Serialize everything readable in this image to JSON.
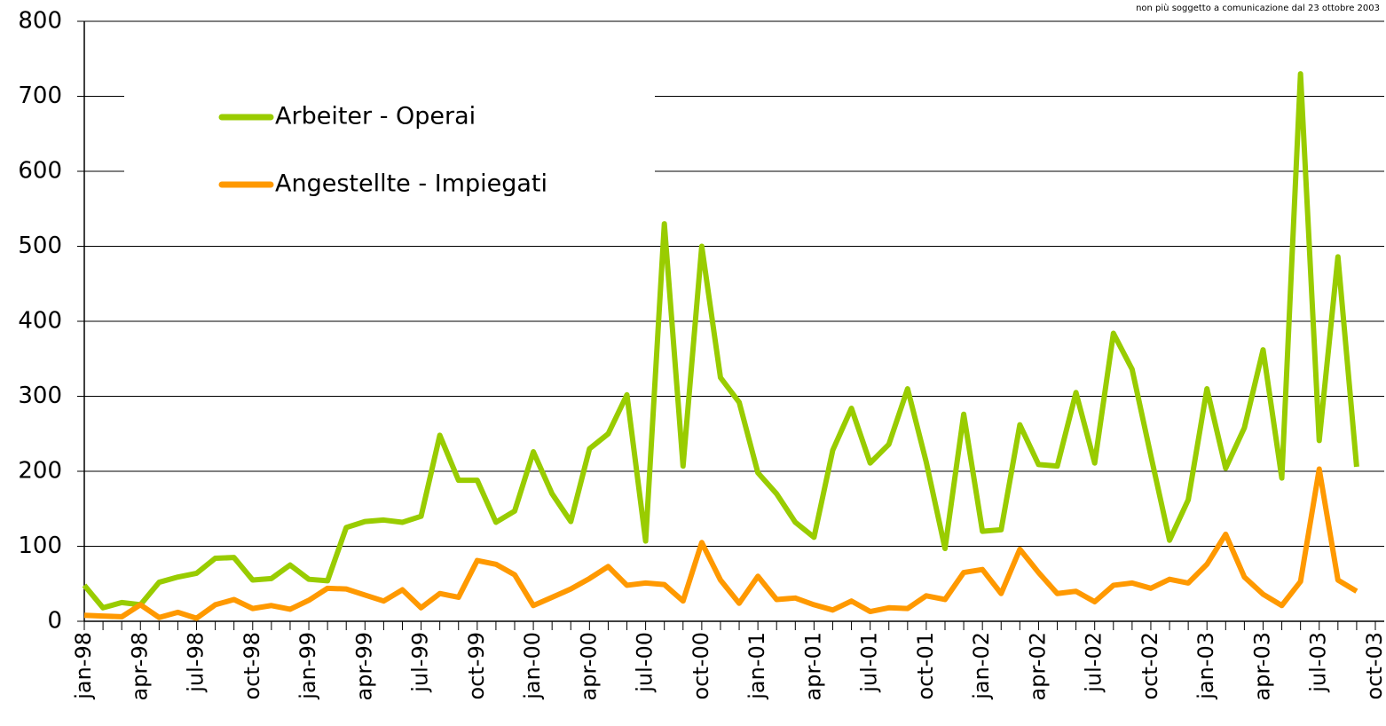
{
  "chart_data": {
    "type": "line",
    "note": "non più soggetto a comunicazione dal 23 ottobre 2003",
    "categories": [
      "jan-98",
      null,
      null,
      "apr-98",
      null,
      null,
      "jul-98",
      null,
      null,
      "oct-98",
      null,
      null,
      "jan-99",
      null,
      null,
      "apr-99",
      null,
      null,
      "jul-99",
      null,
      null,
      "oct-99",
      null,
      null,
      "jan-00",
      null,
      null,
      "apr-00",
      null,
      null,
      "jul-00",
      null,
      null,
      "oct-00",
      null,
      null,
      "jan-01",
      null,
      null,
      "apr-01",
      null,
      null,
      "jul-01",
      null,
      null,
      "oct-01",
      null,
      null,
      "jan-02",
      null,
      null,
      "apr-02",
      null,
      null,
      "jul-02",
      null,
      null,
      "oct-02",
      null,
      null,
      "jan-03",
      null,
      null,
      "apr-03",
      null,
      null,
      "jul-03",
      null,
      null,
      "oct-03"
    ],
    "series": [
      {
        "name": "Arbeiter - Operai",
        "color": "#99cc00",
        "values": [
          48,
          18,
          25,
          22,
          52,
          59,
          64,
          84,
          85,
          55,
          57,
          75,
          56,
          54,
          125,
          133,
          135,
          132,
          140,
          248,
          188,
          188,
          132,
          147,
          226,
          170,
          133,
          230,
          250,
          302,
          107,
          530,
          207,
          500,
          325,
          292,
          198,
          170,
          132,
          112,
          228,
          284,
          211,
          236,
          310,
          212,
          97,
          276,
          120,
          122,
          262,
          209,
          207,
          305,
          211,
          384,
          336,
          221,
          108,
          162,
          310,
          204,
          258,
          362,
          191,
          730,
          241,
          486,
          206,
          null
        ]
      },
      {
        "name": "Angestellte - Impiegati",
        "color": "#ff9900",
        "values": [
          8,
          7,
          6,
          22,
          5,
          12,
          4,
          22,
          29,
          17,
          21,
          16,
          28,
          44,
          43,
          35,
          27,
          42,
          18,
          37,
          32,
          81,
          76,
          62,
          21,
          32,
          43,
          57,
          73,
          48,
          51,
          49,
          27,
          105,
          55,
          24,
          60,
          29,
          31,
          22,
          15,
          27,
          13,
          18,
          17,
          34,
          29,
          65,
          69,
          37,
          96,
          65,
          37,
          40,
          26,
          48,
          51,
          44,
          56,
          51,
          76,
          116,
          59,
          36,
          21,
          53,
          203,
          55,
          40,
          null
        ]
      }
    ],
    "ylim": [
      0,
      800
    ],
    "yticks": [
      0,
      100,
      200,
      300,
      400,
      500,
      600,
      700,
      800
    ],
    "grid": true
  }
}
